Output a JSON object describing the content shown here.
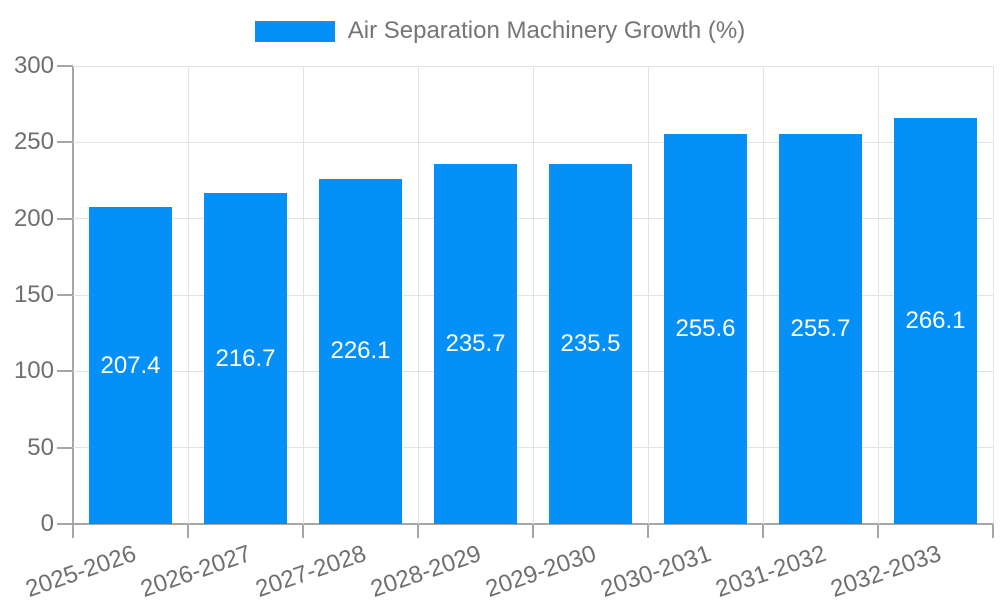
{
  "chart_data": {
    "type": "bar",
    "title": "Air Separation Machinery Growth (%)",
    "categories": [
      "2025-2026",
      "2026-2027",
      "2027-2028",
      "2028-2029",
      "2029-2030",
      "2030-2031",
      "2031-2032",
      "2032-2033"
    ],
    "values": [
      207.4,
      216.7,
      226.1,
      235.7,
      235.5,
      255.6,
      255.7,
      266.1
    ],
    "value_label_decimals": 1,
    "xlabel": "",
    "ylabel": "",
    "ylim": [
      0,
      300
    ],
    "yticks": [
      0,
      50,
      100,
      150,
      200,
      250,
      300
    ],
    "grid": true,
    "legend_position": "top-center",
    "x_tick_rotation_deg": -19,
    "style": {
      "bar_color": "#0590F8",
      "bar_label_color": "#FFFFFF",
      "axis_text_color": "#6F6F6F",
      "legend_text_color": "#757575",
      "grid_color": "#E3E3E3",
      "axis_line_color": "#A6A6A6",
      "background": "#FFFFFF"
    }
  }
}
